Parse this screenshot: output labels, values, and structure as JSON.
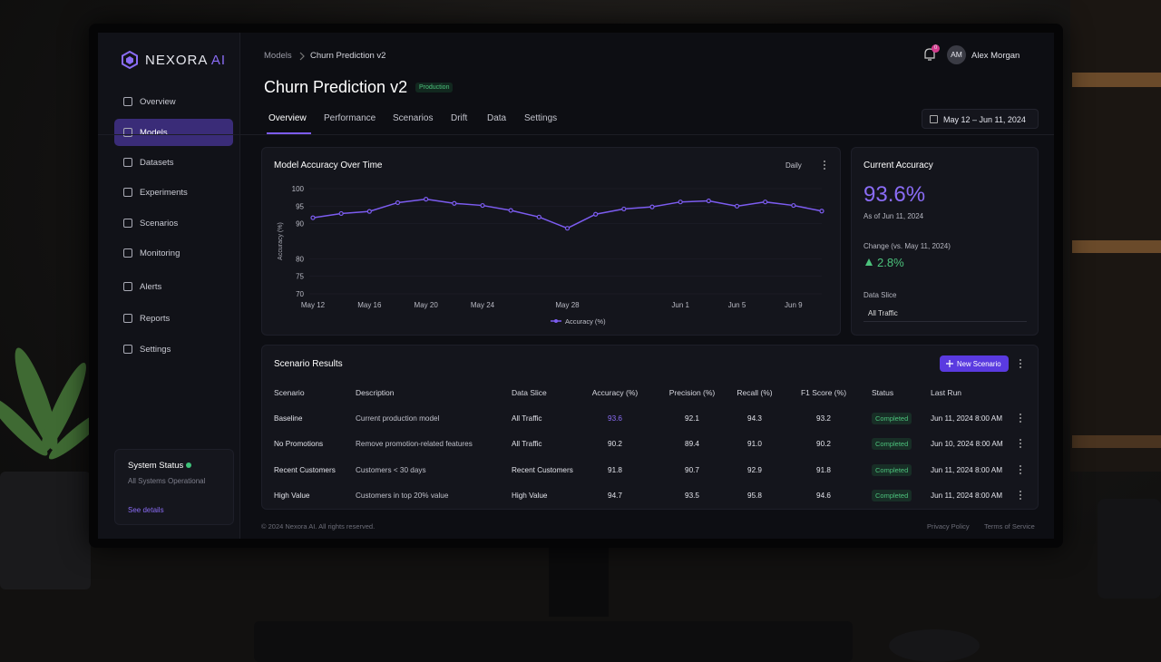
{
  "sidebar": {
    "logo": "NEXORA",
    "logo_accent": "AI",
    "nav": [
      "Overview",
      "Models",
      "Datasets",
      "Experiments",
      "Scenarios",
      "Monitoring",
      "Alerts",
      "Reports",
      "Settings"
    ],
    "status_title": "System Status",
    "status_text": "All Systems Operational",
    "status_link": "See details"
  },
  "header": {
    "breadcrumb": [
      "Models",
      "Churn Prediction v2"
    ],
    "title": "Churn Prediction v2",
    "badge": "Production",
    "tabs": [
      "Overview",
      "Performance",
      "Scenarios",
      "Drift",
      "Data",
      "Settings"
    ],
    "date_range": "May 12 – Jun 11, 2024",
    "notifications": "0",
    "user_initials": "AM",
    "user_name": "Alex Morgan"
  },
  "chart_data": {
    "type": "line",
    "title": "Model Accuracy Over Time",
    "granularity": "Daily",
    "y_label": "Accuracy (%)",
    "categories": [
      "May 12",
      null,
      "May 16",
      null,
      "May 20",
      null,
      "May 24",
      null,
      null,
      "May 28",
      null,
      null,
      null,
      "Jun 1",
      null,
      "Jun 5",
      null,
      "Jun 9",
      null
    ],
    "series": [
      {
        "name": "Accuracy (%)",
        "color": "#7c5cf0",
        "values": [
          91.7,
          92.9,
          93.5,
          96.0,
          97.0,
          95.8,
          95.2,
          93.8,
          91.9,
          88.7,
          92.7,
          94.2,
          94.8,
          96.2,
          96.5,
          95.0,
          96.2,
          95.2,
          93.6
        ]
      }
    ],
    "ylim": [
      70,
      100
    ],
    "yticks": [
      70,
      75,
      80,
      90,
      95,
      100
    ],
    "grid": true
  },
  "summary": {
    "title": "Current Accuracy",
    "value": "93.6%",
    "as_of": "As of Jun 11, 2024",
    "change_label": "Change (vs. May 11, 2024)",
    "change": "2.8%",
    "slice_label": "Data Slice",
    "slice": "All Traffic"
  },
  "table": {
    "title": "Scenario Results",
    "button": "New Scenario",
    "columns": [
      "Scenario",
      "Description",
      "Data Slice",
      "Accuracy (%)",
      "Precision (%)",
      "Recall (%)",
      "F1 Score (%)",
      "Status",
      "Last Run"
    ],
    "rows": [
      [
        "Baseline",
        "Current production model",
        "All Traffic",
        "93.6",
        "92.1",
        "94.3",
        "93.2",
        "Completed",
        "Jun 11, 2024 8:00 AM"
      ],
      [
        "No Promotions",
        "Remove promotion-related features",
        "All Traffic",
        "90.2",
        "89.4",
        "91.0",
        "90.2",
        "Completed",
        "Jun 10, 2024 8:00 AM"
      ],
      [
        "Recent Customers",
        "Customers < 30 days",
        "Recent Customers",
        "91.8",
        "90.7",
        "92.9",
        "91.8",
        "Completed",
        "Jun 11, 2024 8:00 AM"
      ],
      [
        "High Value",
        "Customers in top 20% value",
        "High Value",
        "94.7",
        "93.5",
        "95.8",
        "94.6",
        "Completed",
        "Jun 11, 2024 8:00 AM"
      ]
    ]
  },
  "footer": {
    "copyright": "© 2024 Nexora AI. All rights reserved.",
    "links": [
      "Privacy Policy",
      "Terms of Service"
    ]
  }
}
